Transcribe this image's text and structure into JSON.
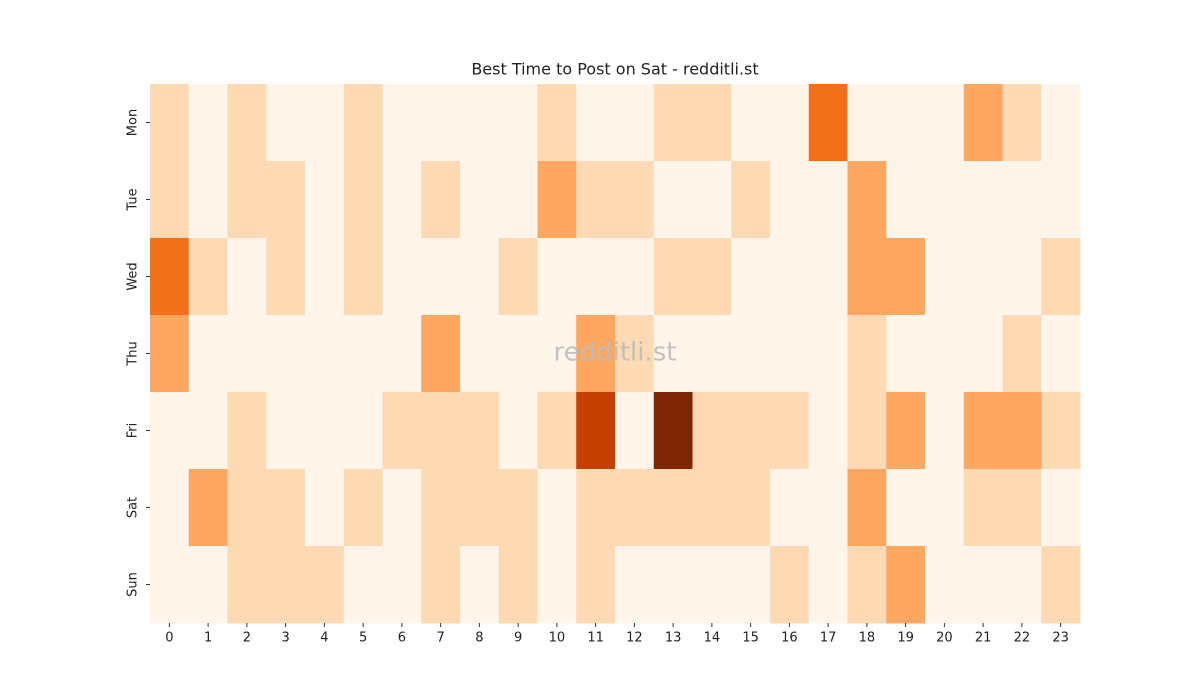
{
  "chart_data": {
    "type": "heatmap",
    "title": "Best Time to Post on Sat - redditli.st",
    "annotation": "redditli.st",
    "categories": [
      "0",
      "1",
      "2",
      "3",
      "4",
      "5",
      "6",
      "7",
      "8",
      "9",
      "10",
      "11",
      "12",
      "13",
      "14",
      "15",
      "16",
      "17",
      "18",
      "19",
      "20",
      "21",
      "22",
      "23"
    ],
    "rows": [
      "Mon",
      "Tue",
      "Wed",
      "Thu",
      "Fri",
      "Sat",
      "Sun"
    ],
    "colors": [
      "#fff5eb",
      "#fdd9b4",
      "#fda761",
      "#f3701b",
      "#c44103",
      "#7f2704"
    ],
    "values": [
      [
        1,
        0,
        1,
        0,
        0,
        1,
        0,
        0,
        0,
        0,
        1,
        0,
        0,
        1,
        1,
        0,
        0,
        3,
        0,
        0,
        0,
        2,
        1,
        0
      ],
      [
        1,
        0,
        1,
        1,
        0,
        1,
        0,
        1,
        0,
        0,
        2,
        1,
        1,
        0,
        0,
        1,
        0,
        0,
        2,
        0,
        0,
        0,
        0,
        0
      ],
      [
        3,
        1,
        0,
        1,
        0,
        1,
        0,
        0,
        0,
        1,
        0,
        0,
        0,
        1,
        1,
        0,
        0,
        0,
        2,
        2,
        0,
        0,
        0,
        1
      ],
      [
        2,
        0,
        0,
        0,
        0,
        0,
        0,
        2,
        0,
        0,
        0,
        2,
        1,
        0,
        0,
        0,
        0,
        0,
        1,
        0,
        0,
        0,
        1,
        0
      ],
      [
        0,
        0,
        1,
        0,
        0,
        0,
        1,
        1,
        1,
        0,
        1,
        4,
        0,
        5,
        1,
        1,
        1,
        0,
        1,
        2,
        0,
        2,
        2,
        1
      ],
      [
        0,
        2,
        1,
        1,
        0,
        1,
        0,
        1,
        1,
        1,
        0,
        1,
        1,
        1,
        1,
        1,
        0,
        0,
        2,
        0,
        0,
        1,
        1,
        0
      ],
      [
        0,
        0,
        1,
        1,
        1,
        0,
        0,
        1,
        0,
        1,
        0,
        1,
        0,
        0,
        0,
        0,
        1,
        0,
        1,
        2,
        0,
        0,
        0,
        1
      ]
    ]
  }
}
